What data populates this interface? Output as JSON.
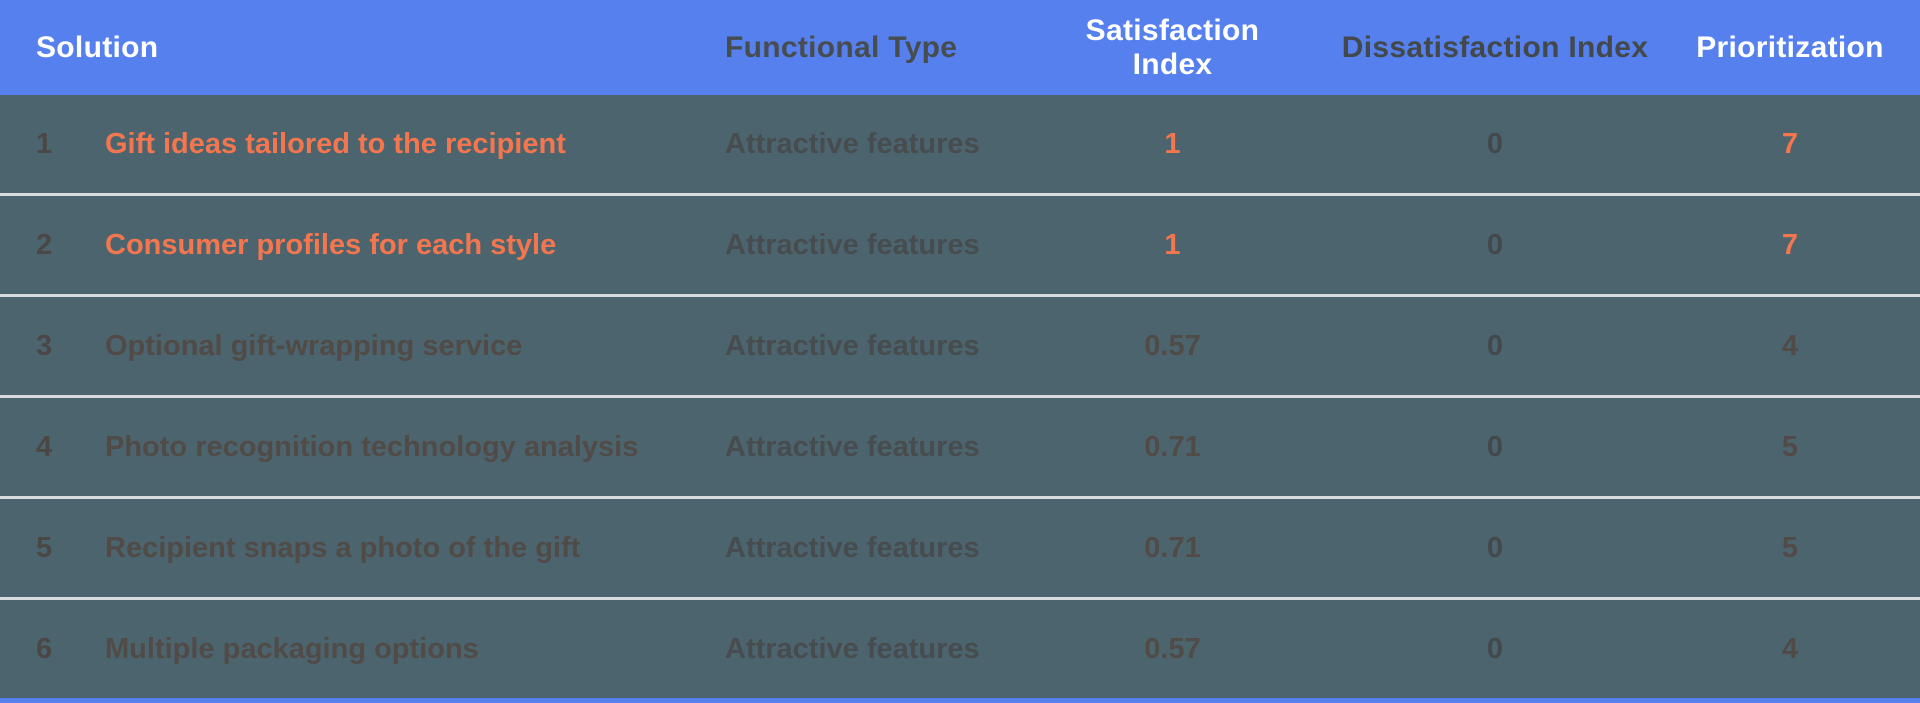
{
  "colors": {
    "header_background": "#5580ed",
    "body_background": "#4c646e",
    "row_separator": "#d8dcde",
    "highlight_orange": "#f4764e",
    "dimmed_text": "#514b48",
    "header_text": "#ffffff"
  },
  "table": {
    "columns": {
      "solution": "Solution",
      "functional_type": "Functional Type",
      "satisfaction": "Satisfaction Index",
      "dissatisfaction": "Dissatisfaction Index",
      "prioritization": "Prioritization"
    },
    "rows": [
      {
        "num": "1",
        "solution": "Gift ideas tailored to the recipient",
        "type": "Attractive features",
        "satisfaction": "1",
        "dissatisfaction": "0",
        "prioritization": "7",
        "highlighted": true
      },
      {
        "num": "2",
        "solution": "Consumer profiles for each style",
        "type": "Attractive features",
        "satisfaction": "1",
        "dissatisfaction": "0",
        "prioritization": "7",
        "highlighted": true
      },
      {
        "num": "3",
        "solution": "Optional gift-wrapping service",
        "type": "Attractive features",
        "satisfaction": "0.57",
        "dissatisfaction": "0",
        "prioritization": "4",
        "highlighted": false
      },
      {
        "num": "4",
        "solution": "Photo recognition technology analysis",
        "type": "Attractive features",
        "satisfaction": "0.71",
        "dissatisfaction": "0",
        "prioritization": "5",
        "highlighted": false
      },
      {
        "num": "5",
        "solution": "Recipient snaps a photo of the gift",
        "type": "Attractive features",
        "satisfaction": "0.71",
        "dissatisfaction": "0",
        "prioritization": "5",
        "highlighted": false
      },
      {
        "num": "6",
        "solution": "Multiple packaging options",
        "type": "Attractive features",
        "satisfaction": "0.57",
        "dissatisfaction": "0",
        "prioritization": "4",
        "highlighted": false
      }
    ]
  }
}
